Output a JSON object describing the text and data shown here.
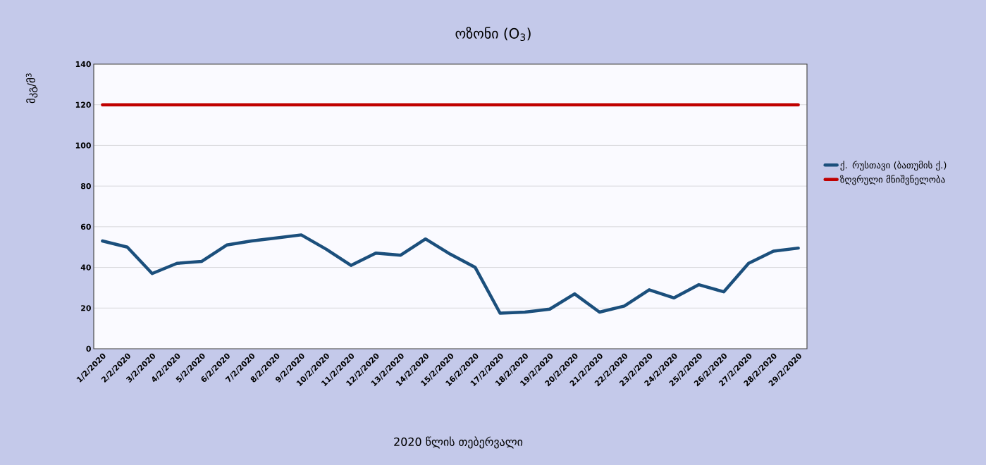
{
  "chart_data": {
    "type": "line",
    "title": "ოზონი (O$_{3}$)",
    "xlabel": "2020 წლის თებერვალი",
    "ylabel": "მკგ/მ$^{3}$",
    "categories": [
      "1/2/2020",
      "2/2/2020",
      "3/2/2020",
      "4/2/2020",
      "5/2/2020",
      "6/2/2020",
      "7/2/2020",
      "8/2/2020",
      "9/2/2020",
      "10/2/2020",
      "11/2/2020",
      "12/2/2020",
      "13/2/2020",
      "14/2/2020",
      "15/2/2020",
      "16/2/2020",
      "17/2/2020",
      "18/2/2020",
      "19/2/2020",
      "20/2/2020",
      "21/2/2020",
      "22/2/2020",
      "23/2/2020",
      "24/2/2020",
      "25/2/2020",
      "26/2/2020",
      "27/2/2020",
      "28/2/2020",
      "29/2/2020"
    ],
    "series": [
      {
        "name": "ქ. რუსთავი (ბათუმის ქ.)",
        "color": "#1b4f7c",
        "values": [
          53,
          50,
          37,
          42,
          43,
          51,
          53,
          54.5,
          56,
          49,
          41,
          47,
          46,
          54,
          46.5,
          40,
          17.5,
          18,
          19.5,
          27,
          18,
          21,
          29,
          25,
          31.5,
          28,
          42,
          48,
          49.5
        ]
      },
      {
        "name": "ზღვრული მნიშვნელობა",
        "color": "#c00000",
        "values": [
          120,
          120,
          120,
          120,
          120,
          120,
          120,
          120,
          120,
          120,
          120,
          120,
          120,
          120,
          120,
          120,
          120,
          120,
          120,
          120,
          120,
          120,
          120,
          120,
          120,
          120,
          120,
          120,
          120
        ]
      }
    ],
    "ylim": [
      0,
      140
    ],
    "yticks": [
      0,
      20,
      40,
      60,
      80,
      100,
      120,
      140
    ],
    "grid": "y",
    "legend": "right",
    "marker": "none",
    "line_style": "solid"
  }
}
